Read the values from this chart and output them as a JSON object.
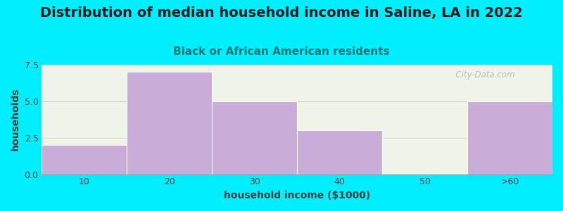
{
  "title": "Distribution of median household income in Saline, LA in 2022",
  "subtitle": "Black or African American residents",
  "categories": [
    "10",
    "20",
    "30",
    "40",
    "50",
    ">60"
  ],
  "values": [
    2,
    7,
    5,
    3,
    0,
    5
  ],
  "bar_color": "#c9acd8",
  "background_color": "#00eeff",
  "plot_bg_top": "#e8f0dc",
  "plot_bg_bottom": "#f8f8f8",
  "xlabel": "household income ($1000)",
  "ylabel": "households",
  "ylim": [
    0,
    7.5
  ],
  "yticks": [
    0,
    2.5,
    5,
    7.5
  ],
  "title_fontsize": 14,
  "subtitle_fontsize": 11,
  "watermark": "  City-Data.com"
}
